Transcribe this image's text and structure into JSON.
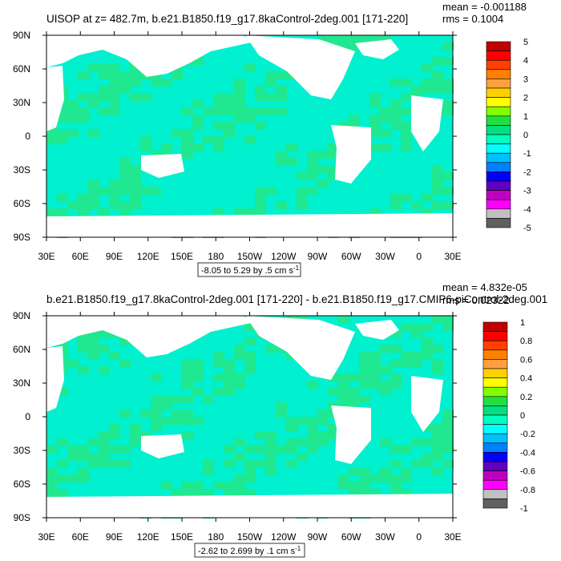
{
  "chart_data": [
    {
      "type": "heatmap",
      "title": "UISOP at z= 482.7m, b.e21.B1850.f19_g17.8kaControl-2deg.001 [171-220]",
      "stats": {
        "mean": "mean = -0.001188",
        "rms": "rms = 0.1004"
      },
      "xticks": [
        "30E",
        "60E",
        "90E",
        "120E",
        "150E",
        "180",
        "150W",
        "120W",
        "90W",
        "60W",
        "30W",
        "0",
        "30E"
      ],
      "yticks": [
        "90N",
        "60N",
        "30N",
        "0",
        "30S",
        "60S",
        "90S"
      ],
      "colorbar": {
        "labels": [
          "5",
          "4",
          "3",
          "2",
          "1",
          "0",
          "-1",
          "-2",
          "-3",
          "-4",
          "-5"
        ],
        "levels": [
          5,
          4,
          3,
          2,
          1,
          0,
          -1,
          -2,
          -3,
          -4,
          -5
        ]
      },
      "info_text": "-8.05 to 5.29 by .5 cm s",
      "info_sup": "-1"
    },
    {
      "type": "heatmap",
      "title": "b.e21.B1850.f19_g17.8kaControl-2deg.001 [171-220] - b.e21.B1850.f19_g17.CMIP6-piControl-2deg.001",
      "stats": {
        "mean": "mean = 4.832e-05",
        "rms": "rms = 0.02322"
      },
      "xticks": [
        "30E",
        "60E",
        "90E",
        "120E",
        "150E",
        "180",
        "150W",
        "120W",
        "90W",
        "60W",
        "30W",
        "0",
        "30E"
      ],
      "yticks": [
        "90N",
        "60N",
        "30N",
        "0",
        "30S",
        "60S",
        "90S"
      ],
      "colorbar": {
        "labels": [
          "1",
          "0.8",
          "0.6",
          "0.4",
          "0.2",
          "0",
          "-0.2",
          "-0.4",
          "-0.6",
          "-0.8",
          "-1"
        ],
        "levels": [
          1,
          0.8,
          0.6,
          0.4,
          0.2,
          0,
          -0.2,
          -0.4,
          -0.6,
          -0.8,
          -1
        ]
      },
      "info_text": "-2.62 to 2.699 by .1 cm s",
      "info_sup": "-1"
    }
  ],
  "colors": {
    "bar": [
      "#c00000",
      "#ff0000",
      "#ff4000",
      "#ff8000",
      "#ffa040",
      "#ffd000",
      "#ffff00",
      "#80ff00",
      "#20e040",
      "#00e080",
      "#00ffc0",
      "#00ffff",
      "#00c0ff",
      "#0080ff",
      "#0000ff",
      "#6000c0",
      "#c000c0",
      "#ff00ff",
      "#c0c0c0",
      "#606060"
    ],
    "ocean_main": "#00f0d0",
    "ocean_alt": "#20e890",
    "land": "#ffffff"
  }
}
